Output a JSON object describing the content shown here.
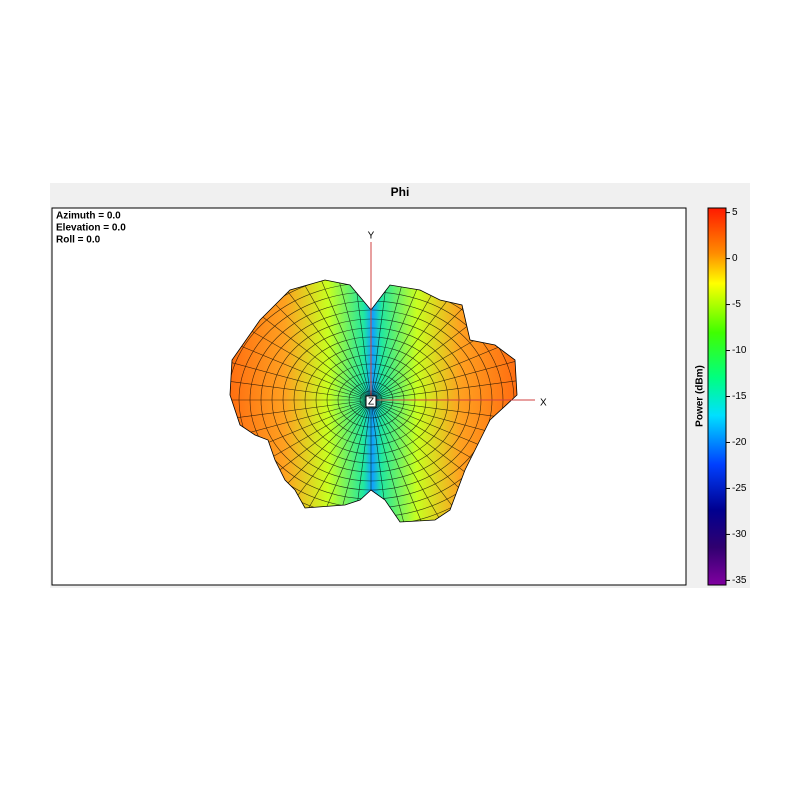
{
  "chart_data": {
    "type": "surface3d",
    "title": "Phi",
    "view_info": [
      "Azimuth = 0.0",
      "Elevation = 0.0",
      "Roll = 0.0"
    ],
    "axis_labels": {
      "x": "X",
      "y": "Y",
      "z": "Z"
    },
    "colorbar": {
      "label": "Power  (dBm)",
      "lim": [
        -35.5,
        5.5
      ],
      "ticks": [
        5,
        0,
        -5,
        -10,
        -15,
        -20,
        -25,
        -30,
        -35
      ]
    }
  }
}
